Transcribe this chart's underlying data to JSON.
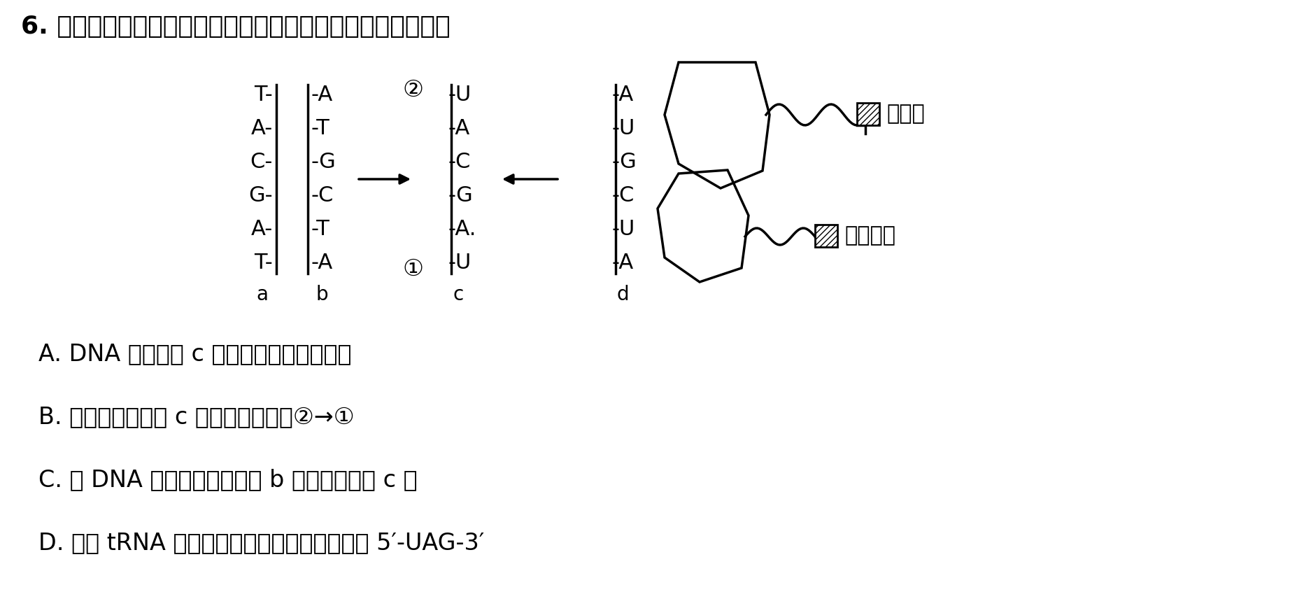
{
  "bg_color": "#ffffff",
  "text_color": "#000000",
  "title_text": "6. 下图表示大肠杆菌遗传信息的表达过程。下列叙述正确的是",
  "answer_a": "A. DNA 转录形成 c 的过程发生在细胞核中",
  "answer_b": "B. 翻译时核糖体在 c 上的移动方向是②→①",
  "answer_c": "C. 在 DNA 解旋酶的作用下以 b 链为模版合成 c 链",
  "answer_d": "D. 图中 tRNA 携带的天冬氨酸对应的密码子是 5′-UAG-3′",
  "strand_a_letters": [
    "T",
    "A",
    "C",
    "G",
    "A",
    "T"
  ],
  "strand_b_letters": [
    "A",
    "T",
    "G",
    "C",
    "T",
    "A"
  ],
  "strand_c_letters": [
    "U",
    "A",
    "C",
    "G",
    "A",
    "U"
  ],
  "strand_d_letters": [
    "A",
    "U",
    "G",
    "C",
    "U",
    "A"
  ],
  "label_a": "a",
  "label_b": "b",
  "label_c": "c",
  "label_d": "d",
  "circle_num_2": "②",
  "circle_num_1": "①",
  "amino1": "酪氨酸",
  "amino2": "天冬氨酸",
  "title_fontsize": 26,
  "body_fontsize": 24,
  "diagram_fontsize": 22,
  "label_fontsize": 20
}
